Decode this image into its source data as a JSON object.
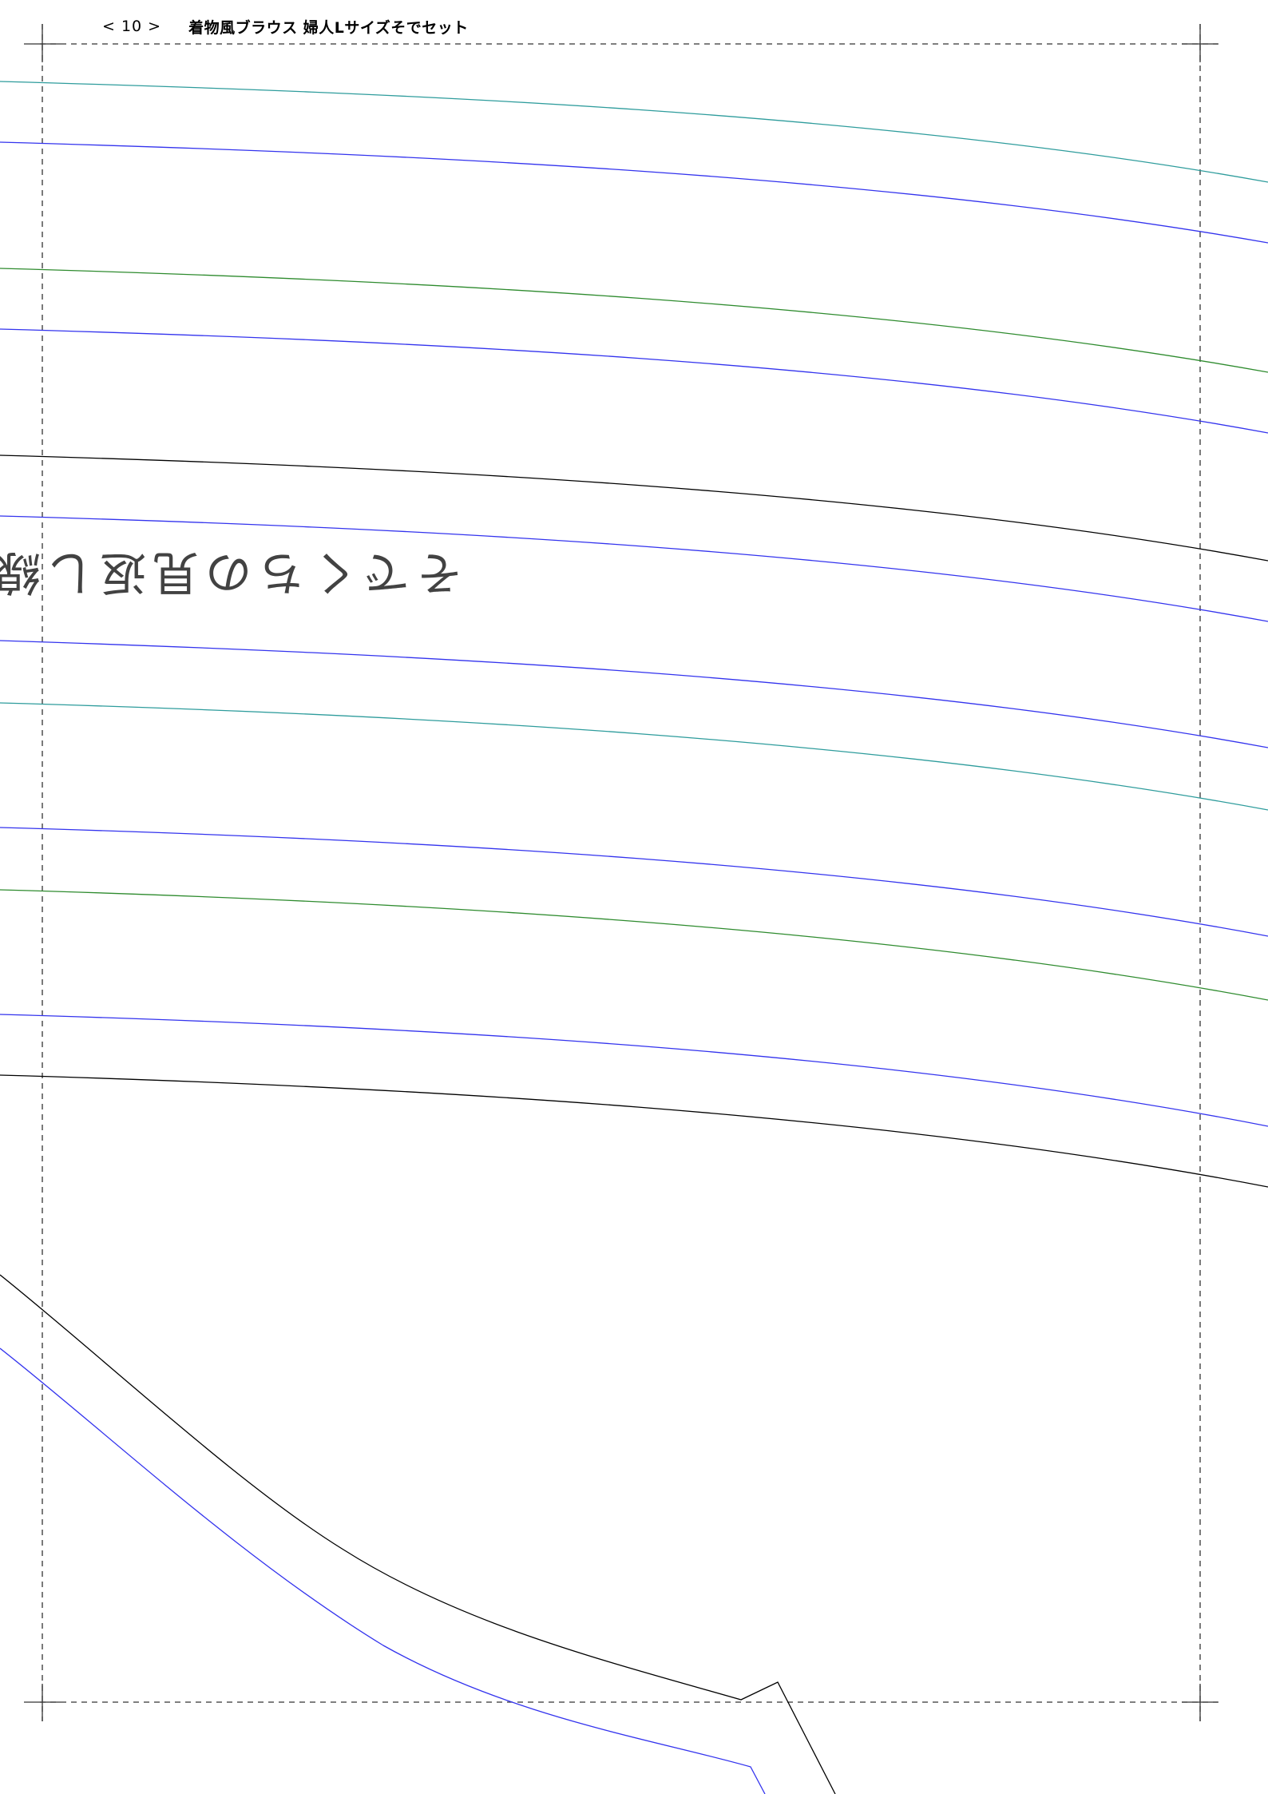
{
  "header": {
    "page_number": "< 10 >",
    "title": "着物風ブラウス 婦人Lサイズそでセット"
  },
  "pattern": {
    "label": "そでくちの見返し線",
    "colors": {
      "cutting_line": "#000000",
      "sewing_line": "#3333ee",
      "teal_line": "#2e9c9c",
      "green_line": "#2e8b2e",
      "guide_line": "#333333"
    }
  }
}
